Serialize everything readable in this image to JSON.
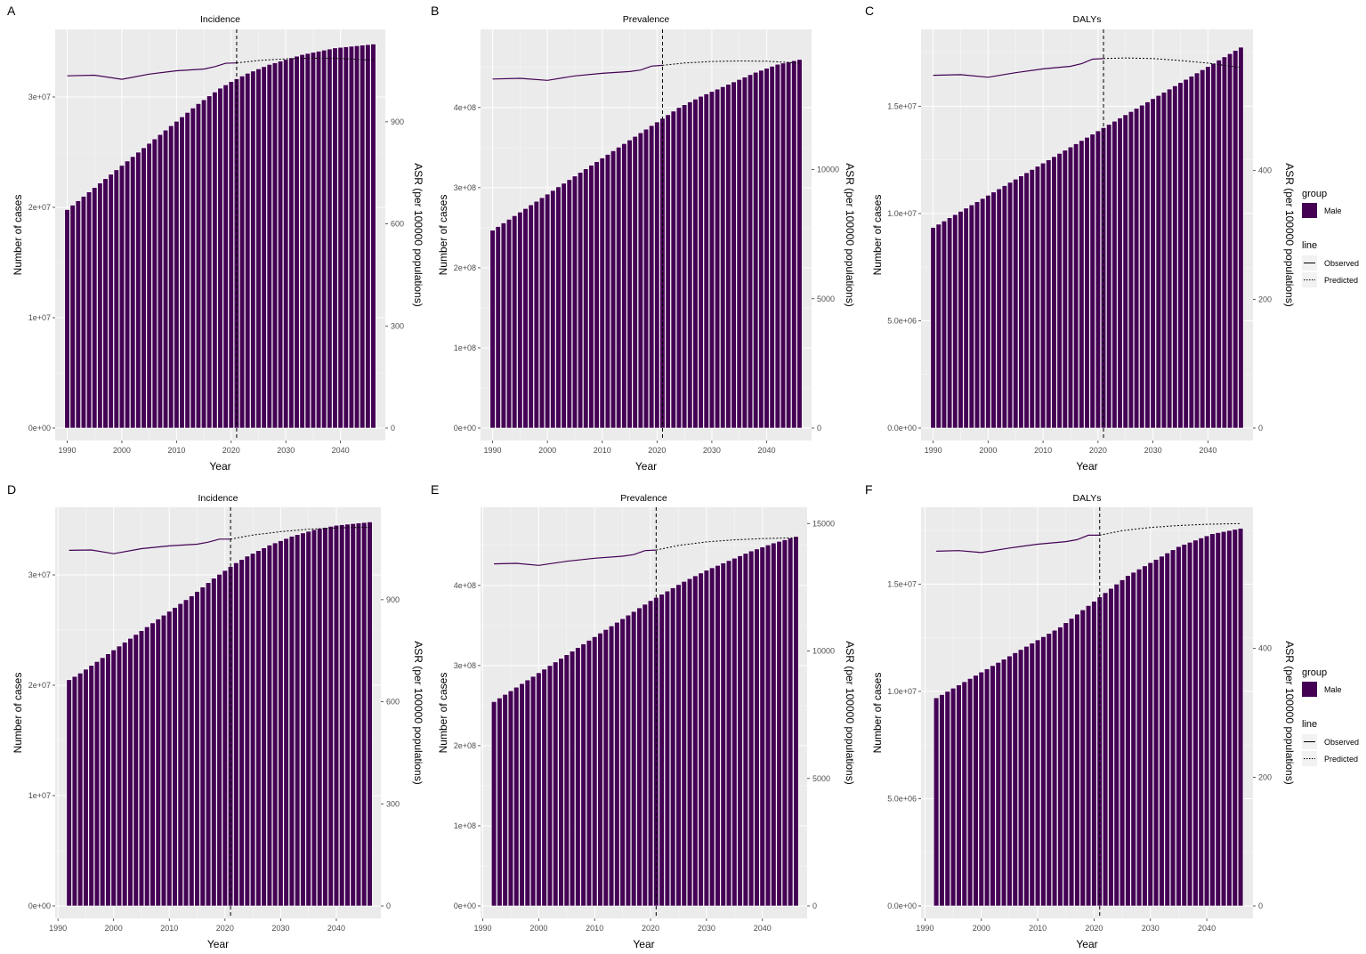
{
  "colors": {
    "bar": "#440154",
    "line": "#440154",
    "panel_bg": "#ebebeb",
    "grid": "#ffffff",
    "legend_key_bg": "#f2f2f2"
  },
  "legend": {
    "group_title": "group",
    "group_item": "Male",
    "line_title": "line",
    "line_items": [
      "Observed",
      "Predicted"
    ]
  },
  "chart_data": [
    {
      "type": "bar",
      "panel_label": "A",
      "title": "Incidence",
      "xlabel": "Year",
      "ylabel": "Number of cases",
      "y2label": "ASR (per 100000 populations)",
      "x_ticks": [
        "1990",
        "2000",
        "2010",
        "2020",
        "2030",
        "2040"
      ],
      "xlim": [
        1987.8,
        2048.2
      ],
      "ylim": [
        0,
        35000000
      ],
      "y_ticks": [
        0,
        10000000,
        20000000,
        30000000
      ],
      "y_tick_labels": [
        "0e+00",
        "1e+07",
        "2e+07",
        "3e+07"
      ],
      "y2lim": [
        0,
        1135
      ],
      "y2_ticks": [
        0,
        300,
        600,
        900
      ],
      "y2_tick_labels": [
        "0",
        "300",
        "600",
        "900"
      ],
      "divider_year": 2021,
      "bar_start_year": 1990,
      "bar_values": [
        19800000,
        20200000,
        20600000,
        21000000,
        21400000,
        21800000,
        22200000,
        22600000,
        23000000,
        23400000,
        23800000,
        24200000,
        24600000,
        25000000,
        25400000,
        25800000,
        26200000,
        26600000,
        27000000,
        27400000,
        27800000,
        28200000,
        28600000,
        29000000,
        29400000,
        29750000,
        30100000,
        30450000,
        30800000,
        31100000,
        31400000,
        31650000,
        31900000,
        32150000,
        32350000,
        32550000,
        32750000,
        32950000,
        33100000,
        33250000,
        33400000,
        33550000,
        33700000,
        33850000,
        33950000,
        34050000,
        34150000,
        34250000,
        34350000,
        34450000,
        34500000,
        34550000,
        34600000,
        34650000,
        34700000,
        34750000,
        34800000
      ],
      "observed_asr": [
        [
          1990,
          1035
        ],
        [
          1995,
          1037
        ],
        [
          2000,
          1025
        ],
        [
          2005,
          1040
        ],
        [
          2010,
          1050
        ],
        [
          2015,
          1055
        ],
        [
          2017,
          1062
        ],
        [
          2019,
          1072
        ],
        [
          2021,
          1073
        ]
      ],
      "predicted_asr": [
        [
          2021,
          1073
        ],
        [
          2025,
          1080
        ],
        [
          2030,
          1085
        ],
        [
          2035,
          1087
        ],
        [
          2040,
          1086
        ],
        [
          2046,
          1081
        ]
      ]
    },
    {
      "type": "bar",
      "panel_label": "B",
      "title": "Prevalence",
      "xlabel": "Year",
      "ylabel": "Number of cases",
      "y2label": "ASR (per 100000 populations)",
      "x_ticks": [
        "1990",
        "2000",
        "2010",
        "2020",
        "2030",
        "2040"
      ],
      "xlim": [
        1987.8,
        2048.2
      ],
      "ylim": [
        0,
        482000000
      ],
      "y_ticks": [
        0,
        100000000,
        200000000,
        300000000,
        400000000
      ],
      "y_tick_labels": [
        "0e+00",
        "1e+08",
        "2e+08",
        "3e+08",
        "4e+08"
      ],
      "y2lim": [
        0,
        14940
      ],
      "y2_ticks": [
        0,
        5000,
        10000
      ],
      "y2_tick_labels": [
        "0",
        "5000",
        "10000"
      ],
      "divider_year": 2021,
      "bar_start_year": 1990,
      "bar_values": [
        247000000,
        251500000,
        256000000,
        260500000,
        265000000,
        269500000,
        274000000,
        278500000,
        283000000,
        287500000,
        292000000,
        296500000,
        301000000,
        305500000,
        310000000,
        314500000,
        319000000,
        323500000,
        328000000,
        332500000,
        337000000,
        341500000,
        346000000,
        350500000,
        355000000,
        359500000,
        364000000,
        368500000,
        373000000,
        377500000,
        382000000,
        386500000,
        391000000,
        395500000,
        400000000,
        403500000,
        407000000,
        410500000,
        414000000,
        417000000,
        420000000,
        423000000,
        426000000,
        429000000,
        432000000,
        435000000,
        438000000,
        441000000,
        444000000,
        446500000,
        449000000,
        451500000,
        454000000,
        455500000,
        457000000,
        458500000,
        460000000
      ],
      "observed_asr": [
        [
          1990,
          13500
        ],
        [
          1995,
          13530
        ],
        [
          2000,
          13450
        ],
        [
          2005,
          13620
        ],
        [
          2010,
          13720
        ],
        [
          2015,
          13790
        ],
        [
          2017,
          13850
        ],
        [
          2019,
          14000
        ],
        [
          2021,
          14030
        ]
      ],
      "predicted_asr": [
        [
          2021,
          14030
        ],
        [
          2025,
          14120
        ],
        [
          2030,
          14180
        ],
        [
          2035,
          14200
        ],
        [
          2040,
          14190
        ],
        [
          2046,
          14120
        ]
      ]
    },
    {
      "type": "bar",
      "panel_label": "C",
      "title": "DALYs",
      "xlabel": "Year",
      "ylabel": "Number of cases",
      "y2label": "ASR (per 100000 populations)",
      "x_ticks": [
        "1990",
        "2000",
        "2010",
        "2020",
        "2030",
        "2040"
      ],
      "xlim": [
        1987.8,
        2048.2
      ],
      "ylim": [
        0,
        18000000
      ],
      "y_ticks": [
        0,
        5000000,
        10000000,
        15000000
      ],
      "y_tick_labels": [
        "0.0e+00",
        "5.0e+06",
        "1.0e+07",
        "1.5e+07"
      ],
      "y2lim": [
        0,
        600
      ],
      "y2_ticks": [
        0,
        200,
        400
      ],
      "y2_tick_labels": [
        "0",
        "200",
        "400"
      ],
      "divider_year": 2021,
      "bar_start_year": 1990,
      "bar_values": [
        9350000,
        9500000,
        9650000,
        9800000,
        9950000,
        10100000,
        10250000,
        10400000,
        10550000,
        10700000,
        10850000,
        11000000,
        11150000,
        11300000,
        11450000,
        11600000,
        11750000,
        11900000,
        12050000,
        12200000,
        12350000,
        12500000,
        12650000,
        12800000,
        12950000,
        13100000,
        13250000,
        13400000,
        13550000,
        13700000,
        13850000,
        14000000,
        14150000,
        14300000,
        14450000,
        14600000,
        14750000,
        14900000,
        15050000,
        15200000,
        15350000,
        15500000,
        15650000,
        15800000,
        15950000,
        16100000,
        16250000,
        16400000,
        16550000,
        16700000,
        16850000,
        17000000,
        17150000,
        17300000,
        17450000,
        17600000,
        17750000
      ],
      "observed_asr": [
        [
          1990,
          548
        ],
        [
          1995,
          549
        ],
        [
          2000,
          545
        ],
        [
          2005,
          552
        ],
        [
          2010,
          558
        ],
        [
          2015,
          562
        ],
        [
          2017,
          566
        ],
        [
          2019,
          573
        ],
        [
          2021,
          574
        ]
      ],
      "predicted_asr": [
        [
          2021,
          574
        ],
        [
          2025,
          575
        ],
        [
          2030,
          574
        ],
        [
          2035,
          571
        ],
        [
          2040,
          567
        ],
        [
          2046,
          560
        ]
      ]
    },
    {
      "type": "bar",
      "panel_label": "D",
      "title": "Incidence",
      "xlabel": "Year",
      "ylabel": "Number of cases",
      "y2label": "ASR (per 100000 populations)",
      "x_ticks": [
        "1990",
        "2000",
        "2010",
        "2020",
        "2030",
        "2040"
      ],
      "xlim": [
        1989.5,
        2048.0
      ],
      "ylim": [
        0,
        35000000
      ],
      "y_ticks": [
        0,
        10000000,
        20000000,
        30000000
      ],
      "y_tick_labels": [
        "0e+00",
        "1e+07",
        "2e+07",
        "3e+07"
      ],
      "y2lim": [
        0,
        1135
      ],
      "y2_ticks": [
        0,
        300,
        600,
        900
      ],
      "y2_tick_labels": [
        "0",
        "300",
        "600",
        "900"
      ],
      "divider_year": 2021,
      "bar_start_year": 1992,
      "bar_values": [
        20500000,
        20800000,
        21100000,
        21450000,
        21800000,
        22150000,
        22500000,
        22850000,
        23200000,
        23550000,
        23900000,
        24250000,
        24600000,
        24950000,
        25300000,
        25650000,
        26000000,
        26350000,
        26700000,
        27050000,
        27400000,
        27750000,
        28100000,
        28500000,
        28900000,
        29300000,
        29700000,
        30050000,
        30400000,
        30750000,
        31100000,
        31400000,
        31700000,
        31950000,
        32200000,
        32450000,
        32700000,
        32900000,
        33100000,
        33300000,
        33500000,
        33650000,
        33800000,
        33950000,
        34100000,
        34200000,
        34300000,
        34400000,
        34500000,
        34550000,
        34600000,
        34650000,
        34700000,
        34750000,
        34800000
      ],
      "observed_asr": [
        [
          1992,
          1045
        ],
        [
          1996,
          1046
        ],
        [
          2000,
          1035
        ],
        [
          2005,
          1050
        ],
        [
          2010,
          1058
        ],
        [
          2015,
          1063
        ],
        [
          2017,
          1069
        ],
        [
          2019,
          1078
        ],
        [
          2021,
          1078
        ]
      ],
      "predicted_asr": [
        [
          2021,
          1078
        ],
        [
          2025,
          1090
        ],
        [
          2030,
          1100
        ],
        [
          2035,
          1107
        ],
        [
          2040,
          1111
        ],
        [
          2046,
          1113
        ]
      ]
    },
    {
      "type": "bar",
      "panel_label": "E",
      "title": "Prevalence",
      "xlabel": "Year",
      "ylabel": "Number of cases",
      "y2label": "ASR (per 100000 populations)",
      "x_ticks": [
        "1990",
        "2000",
        "2010",
        "2020",
        "2030",
        "2040"
      ],
      "xlim": [
        1989.6,
        2048.0
      ],
      "ylim": [
        0,
        482000000
      ],
      "y_ticks": [
        0,
        100000000,
        200000000,
        300000000,
        400000000
      ],
      "y_tick_labels": [
        "0e+00",
        "1e+08",
        "2e+08",
        "3e+08",
        "4e+08"
      ],
      "y2lim": [
        0,
        15150
      ],
      "y2_ticks": [
        0,
        5000,
        10000,
        15000
      ],
      "y2_tick_labels": [
        "0",
        "5000",
        "10000",
        "15000"
      ],
      "divider_year": 2021,
      "bar_start_year": 1992,
      "bar_values": [
        255000000,
        259500000,
        264000000,
        268500000,
        273000000,
        277500000,
        282000000,
        286500000,
        291000000,
        295500000,
        300000000,
        304500000,
        309000000,
        313500000,
        318000000,
        322500000,
        327000000,
        331500000,
        336000000,
        340500000,
        345000000,
        349500000,
        354000000,
        358500000,
        363000000,
        367500000,
        372000000,
        376500000,
        381000000,
        385000000,
        389000000,
        393000000,
        397000000,
        401000000,
        405000000,
        408500000,
        412000000,
        415500000,
        419000000,
        422000000,
        425000000,
        428000000,
        431000000,
        434000000,
        437000000,
        440000000,
        443000000,
        445500000,
        448000000,
        450500000,
        453000000,
        455000000,
        457000000,
        459000000,
        461000000
      ],
      "observed_asr": [
        [
          1992,
          13420
        ],
        [
          1996,
          13440
        ],
        [
          2000,
          13360
        ],
        [
          2005,
          13520
        ],
        [
          2010,
          13640
        ],
        [
          2015,
          13720
        ],
        [
          2017,
          13780
        ],
        [
          2019,
          13940
        ],
        [
          2021,
          13960
        ]
      ],
      "predicted_asr": [
        [
          2021,
          13960
        ],
        [
          2025,
          14140
        ],
        [
          2030,
          14280
        ],
        [
          2035,
          14360
        ],
        [
          2040,
          14410
        ],
        [
          2046,
          14440
        ]
      ]
    },
    {
      "type": "bar",
      "panel_label": "F",
      "title": "DALYs",
      "xlabel": "Year",
      "ylabel": "Number of cases",
      "y2label": "ASR (per 100000 populations)",
      "x_ticks": [
        "1990",
        "2000",
        "2010",
        "2020",
        "2030",
        "2040"
      ],
      "xlim": [
        1989.3,
        2048.2
      ],
      "ylim": [
        0,
        18000000
      ],
      "y_ticks": [
        0,
        5000000,
        10000000,
        15000000
      ],
      "y_tick_labels": [
        "0.0e+00",
        "5.0e+06",
        "1.0e+07",
        "1.5e+07"
      ],
      "y2lim": [
        0,
        600
      ],
      "y2_ticks": [
        0,
        200,
        400
      ],
      "y2_tick_labels": [
        "0",
        "200",
        "400"
      ],
      "divider_year": 2021,
      "bar_start_year": 1992,
      "bar_values": [
        9700000,
        9850000,
        10000000,
        10150000,
        10300000,
        10450000,
        10600000,
        10750000,
        10900000,
        11050000,
        11200000,
        11350000,
        11500000,
        11650000,
        11800000,
        11950000,
        12100000,
        12250000,
        12400000,
        12550000,
        12700000,
        12850000,
        13000000,
        13200000,
        13400000,
        13600000,
        13800000,
        14000000,
        14200000,
        14400000,
        14600000,
        14800000,
        15000000,
        15200000,
        15400000,
        15550000,
        15700000,
        15850000,
        16000000,
        16150000,
        16300000,
        16450000,
        16600000,
        16750000,
        16850000,
        16950000,
        17050000,
        17150000,
        17250000,
        17350000,
        17400000,
        17450000,
        17500000,
        17550000,
        17600000
      ],
      "observed_asr": [
        [
          1992,
          551
        ],
        [
          1996,
          552
        ],
        [
          2000,
          549
        ],
        [
          2005,
          556
        ],
        [
          2010,
          562
        ],
        [
          2015,
          566
        ],
        [
          2017,
          569
        ],
        [
          2019,
          576
        ],
        [
          2021,
          576
        ]
      ],
      "predicted_asr": [
        [
          2021,
          576
        ],
        [
          2025,
          583
        ],
        [
          2030,
          588
        ],
        [
          2035,
          591
        ],
        [
          2040,
          593
        ],
        [
          2046,
          594
        ]
      ]
    }
  ]
}
